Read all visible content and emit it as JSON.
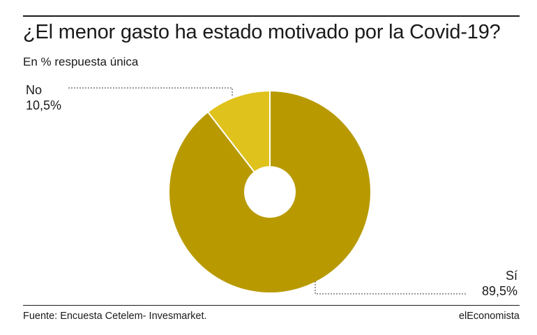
{
  "title": "¿El menor gasto ha estado motivado por la Covid-19?",
  "subtitle": "En % respuesta única",
  "source": "Fuente: Encuesta Cetelem- Invesmarket.",
  "brand": "elEconomista",
  "chart_data": {
    "type": "pie",
    "title": "¿El menor gasto ha estado motivado por la Covid-19?",
    "subtitle": "En % respuesta única",
    "slices": [
      {
        "label": "Sí",
        "value": 89.5,
        "value_label": "89,5%",
        "color": "#b89a00"
      },
      {
        "label": "No",
        "value": 10.5,
        "value_label": "10,5%",
        "color": "#e0c21c"
      }
    ],
    "donut": true,
    "legend": "none"
  }
}
